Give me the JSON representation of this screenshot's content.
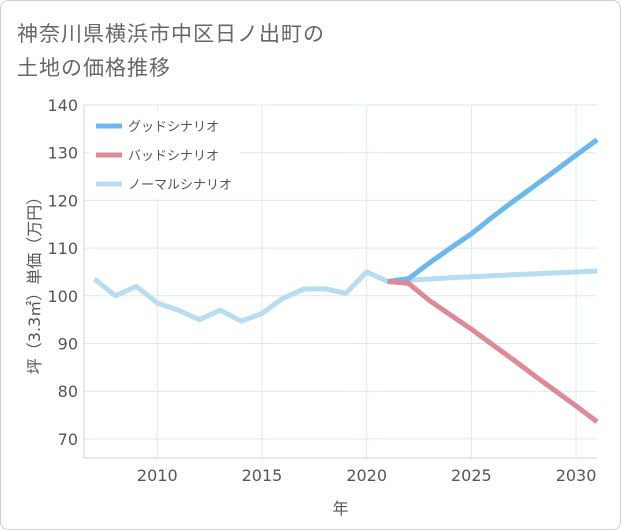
{
  "title": {
    "line1": "神奈川県横浜市中区日ノ出町の",
    "line2": "土地の価格推移"
  },
  "chart_data": {
    "type": "line",
    "xlabel": "年",
    "ylabel": "坪（3.3㎡）単価（万円）",
    "xlim": [
      2006.5,
      2031
    ],
    "ylim": [
      66,
      140
    ],
    "xticks": [
      2010,
      2015,
      2020,
      2025,
      2030
    ],
    "yticks": [
      70,
      80,
      90,
      100,
      110,
      120,
      130,
      140
    ],
    "grid": true,
    "legend_position": "top-left",
    "series": [
      {
        "name": "グッドシナリオ",
        "color": "#6cb8ec",
        "x": [
          2021,
          2022,
          2023,
          2024,
          2025,
          2026,
          2027,
          2028,
          2029,
          2030,
          2031
        ],
        "y": [
          103.0,
          103.6,
          106.9,
          110.0,
          113.0,
          116.5,
          119.8,
          123.0,
          126.2,
          129.5,
          132.7
        ]
      },
      {
        "name": "バッドシナリオ",
        "color": "#de8a96",
        "x": [
          2021,
          2022,
          2023,
          2024,
          2025,
          2026,
          2027,
          2028,
          2029,
          2030,
          2031
        ],
        "y": [
          103.0,
          102.6,
          99.0,
          96.0,
          93.0,
          89.8,
          86.6,
          83.3,
          80.1,
          76.9,
          73.6
        ]
      },
      {
        "name": "ノーマルシナリオ",
        "color": "#b8dcf0",
        "x": [
          2007,
          2008,
          2009,
          2010,
          2011,
          2012,
          2013,
          2014,
          2015,
          2016,
          2017,
          2018,
          2019,
          2020,
          2021,
          2022,
          2023,
          2024,
          2025,
          2026,
          2027,
          2028,
          2029,
          2030,
          2031
        ],
        "y": [
          103.5,
          100.0,
          102.0,
          98.5,
          97.0,
          95.0,
          97.0,
          94.7,
          96.3,
          99.5,
          101.4,
          101.5,
          100.5,
          105.0,
          103.0,
          103.3,
          103.5,
          103.8,
          104.0,
          104.2,
          104.4,
          104.6,
          104.8,
          105.0,
          105.2
        ]
      }
    ]
  }
}
